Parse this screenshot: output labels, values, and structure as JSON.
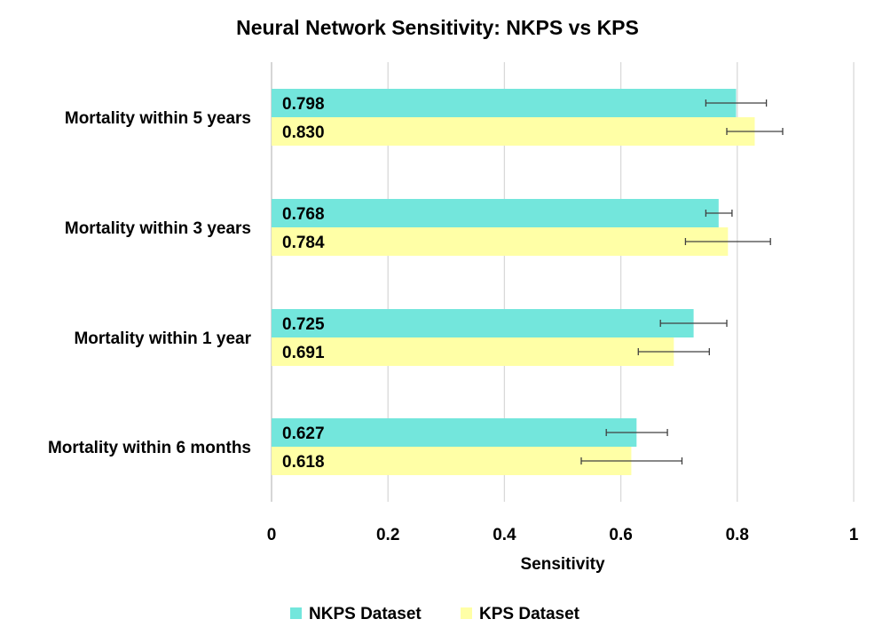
{
  "chart_data": {
    "type": "bar",
    "orientation": "horizontal",
    "title": "Neural Network Sensitivity: NKPS vs KPS",
    "xlabel": "Sensitivity",
    "ylabel": "",
    "xlim": [
      0,
      1
    ],
    "xticks": [
      0,
      0.2,
      0.4,
      0.6,
      0.8,
      1
    ],
    "tick_labels": [
      "0",
      "0.2",
      "0.4",
      "0.6",
      "0.8",
      "1"
    ],
    "grid": true,
    "legend_position": "bottom",
    "categories": [
      "Mortality within 5 years",
      "Mortality within 3 years",
      "Mortality within 1 year",
      "Mortality within 6 months"
    ],
    "series": [
      {
        "name": "NKPS Dataset",
        "color": "#73E6DC",
        "values": [
          0.798,
          0.768,
          0.725,
          0.627
        ],
        "labels": [
          "0.798",
          "0.768",
          "0.725",
          "0.627"
        ],
        "error_low": [
          0.746,
          0.746,
          0.668,
          0.575
        ],
        "error_high": [
          0.85,
          0.791,
          0.782,
          0.68
        ]
      },
      {
        "name": "KPS Dataset",
        "color": "#FFFFA6",
        "values": [
          0.83,
          0.784,
          0.691,
          0.618
        ],
        "labels": [
          "0.830",
          "0.784",
          "0.691",
          "0.618"
        ],
        "error_low": [
          0.782,
          0.711,
          0.63,
          0.532
        ],
        "error_high": [
          0.878,
          0.857,
          0.752,
          0.705
        ]
      }
    ]
  }
}
